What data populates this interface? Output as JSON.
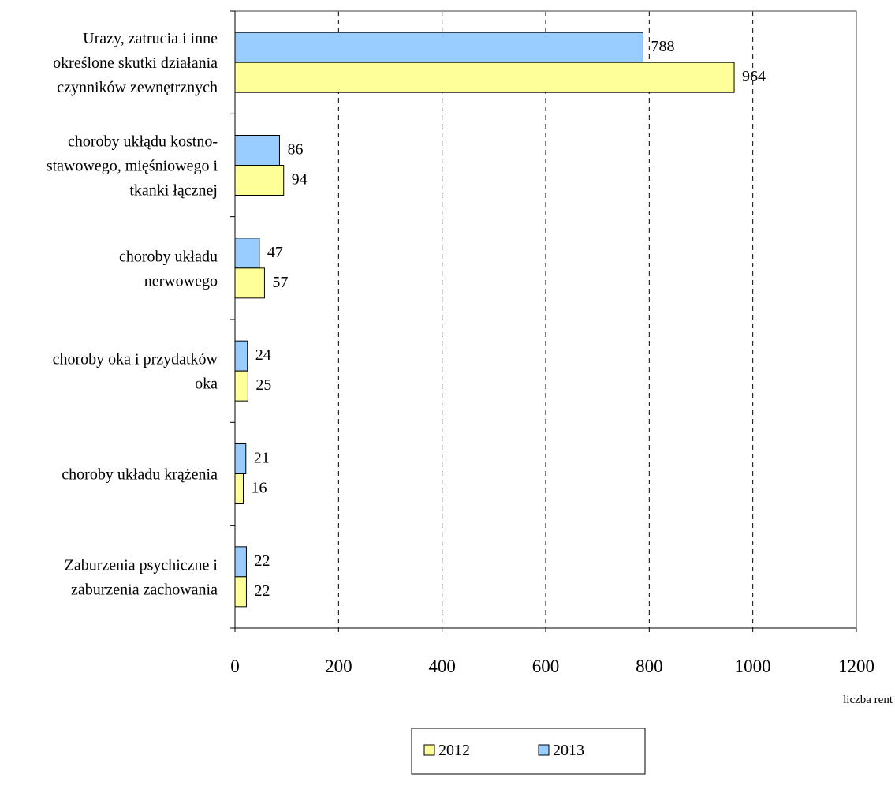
{
  "chart_data": {
    "type": "bar",
    "orientation": "horizontal",
    "title": "",
    "xlabel": "liczba rent",
    "ylabel": "",
    "xlim": [
      0,
      1200
    ],
    "xticks": [
      0,
      200,
      400,
      600,
      800,
      1000,
      1200
    ],
    "grid": "vertical dashed",
    "legend_position": "bottom-center",
    "categories": [
      [
        "Urazy, zatrucia i inne",
        "określone skutki działania",
        "czynników zewnętrznych"
      ],
      [
        "choroby ukłądu kostno-",
        "stawowego, mięśniowego i",
        "tkanki łącznej"
      ],
      [
        "choroby układu",
        "nerwowego"
      ],
      [
        "choroby oka i przydatków",
        "oka"
      ],
      [
        "choroby układu krążenia"
      ],
      [
        "Zaburzenia psychiczne i",
        "zaburzenia zachowania"
      ]
    ],
    "series": [
      {
        "name": "2013",
        "color": "#99ccff",
        "values": [
          788,
          86,
          47,
          24,
          21,
          22
        ]
      },
      {
        "name": "2012",
        "color": "#ffff99",
        "values": [
          964,
          94,
          57,
          25,
          16,
          22
        ]
      }
    ],
    "legend_order": [
      "2012",
      "2013"
    ]
  }
}
